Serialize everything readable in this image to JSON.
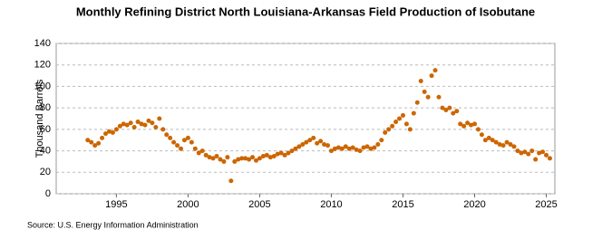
{
  "chart_data": {
    "type": "scatter",
    "title": "Monthly Refining District North Louisiana-Arkansas Field Production of Isobutane",
    "y_label": "Thousand Barrels",
    "source": "Source: U.S. Energy Information Administration",
    "color": "#cc6600",
    "grid": true,
    "xlim": [
      1990.8,
      2025.6
    ],
    "xticks": [
      1995,
      2000,
      2005,
      2010,
      2015,
      2020,
      2025
    ],
    "ylim": [
      0,
      140
    ],
    "yticks": [
      0,
      20,
      40,
      60,
      80,
      100,
      120,
      140
    ],
    "x": [
      1993,
      1993.25,
      1993.5,
      1993.75,
      1994,
      1994.25,
      1994.5,
      1994.75,
      1995,
      1995.25,
      1995.5,
      1995.75,
      1996,
      1996.25,
      1996.5,
      1996.75,
      1997,
      1997.25,
      1997.5,
      1997.75,
      1998,
      1998.25,
      1998.5,
      1998.75,
      1999,
      1999.25,
      1999.5,
      1999.75,
      2000,
      2000.25,
      2000.5,
      2000.75,
      2001,
      2001.25,
      2001.5,
      2001.75,
      2002,
      2002.25,
      2002.5,
      2002.75,
      2003,
      2003.25,
      2003.5,
      2003.75,
      2004,
      2004.25,
      2004.5,
      2004.75,
      2005,
      2005.25,
      2005.5,
      2005.75,
      2006,
      2006.25,
      2006.5,
      2006.75,
      2007,
      2007.25,
      2007.5,
      2007.75,
      2008,
      2008.25,
      2008.5,
      2008.75,
      2009,
      2009.25,
      2009.5,
      2009.75,
      2010,
      2010.25,
      2010.5,
      2010.75,
      2011,
      2011.25,
      2011.5,
      2011.75,
      2012,
      2012.25,
      2012.5,
      2012.75,
      2013,
      2013.25,
      2013.5,
      2013.75,
      2014,
      2014.25,
      2014.5,
      2014.75,
      2015,
      2015.25,
      2015.5,
      2015.75,
      2016,
      2016.25,
      2016.5,
      2016.75,
      2017,
      2017.25,
      2017.5,
      2017.75,
      2018,
      2018.25,
      2018.5,
      2018.75,
      2019,
      2019.25,
      2019.5,
      2019.75,
      2020,
      2020.25,
      2020.5,
      2020.75,
      2021,
      2021.25,
      2021.5,
      2021.75,
      2022,
      2022.25,
      2022.5,
      2022.75,
      2023,
      2023.25,
      2023.5,
      2023.75,
      2024,
      2024.25,
      2024.5,
      2024.75,
      2025,
      2025.25
    ],
    "values": [
      50,
      48,
      45,
      47,
      52,
      56,
      58,
      57,
      60,
      63,
      65,
      64,
      66,
      62,
      67,
      65,
      64,
      68,
      66,
      62,
      70,
      60,
      55,
      52,
      48,
      45,
      42,
      50,
      52,
      48,
      42,
      38,
      40,
      36,
      34,
      33,
      35,
      32,
      30,
      34,
      12,
      30,
      32,
      33,
      33,
      32,
      34,
      31,
      33,
      35,
      36,
      34,
      35,
      37,
      38,
      36,
      38,
      40,
      42,
      44,
      46,
      48,
      50,
      52,
      47,
      49,
      46,
      45,
      40,
      42,
      43,
      42,
      44,
      42,
      43,
      41,
      40,
      43,
      44,
      42,
      43,
      46,
      50,
      57,
      60,
      63,
      67,
      70,
      73,
      65,
      60,
      75,
      85,
      105,
      95,
      90,
      110,
      115,
      90,
      80,
      78,
      80,
      75,
      77,
      65,
      63,
      66,
      64,
      65,
      60,
      55,
      50,
      52,
      50,
      48,
      46,
      45,
      48,
      46,
      44,
      40,
      38,
      39,
      37,
      40,
      32,
      38,
      39,
      36,
      33
    ]
  }
}
